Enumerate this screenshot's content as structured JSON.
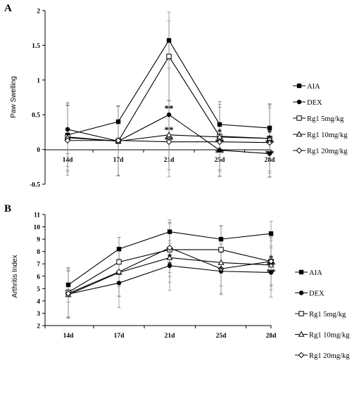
{
  "chart_data": [
    {
      "type": "line",
      "panel_label": "A",
      "ylabel": "Paw Swelling",
      "xlabel": "",
      "categories": [
        "14d",
        "17d",
        "21d",
        "25d",
        "28d"
      ],
      "ylim": [
        -0.5,
        2
      ],
      "yticks": [
        "-0.5",
        "0",
        "0.5",
        "1",
        "1.5",
        "2"
      ],
      "ytick_values": [
        -0.5,
        0,
        0.5,
        1,
        1.5,
        2
      ],
      "grid": false,
      "legend_position": "right",
      "series": [
        {
          "name": "AIA",
          "marker": "square-filled",
          "values": [
            0.21,
            0.4,
            1.57,
            0.36,
            0.31
          ],
          "errors": [
            0.45,
            0.23,
            0.28,
            0.33,
            0.34
          ]
        },
        {
          "name": "DEX",
          "marker": "circle-filled",
          "values": [
            0.29,
            0.12,
            0.5,
            -0.01,
            -0.06
          ],
          "errors": [
            0.35,
            0.5,
            0.67,
            0.37,
            0.33
          ]
        },
        {
          "name": "Rg1 5mg/kg",
          "marker": "square-open",
          "values": [
            0.18,
            0.12,
            1.34,
            0.19,
            0.16
          ],
          "errors": [
            0.5,
            0.5,
            0.64,
            0.5,
            0.5
          ]
        },
        {
          "name": "Rg1 10mg/kg",
          "marker": "triangle-open",
          "values": [
            0.17,
            0.12,
            0.21,
            0.18,
            0.16
          ],
          "errors": [
            0.47,
            0.5,
            0.5,
            0.47,
            0.47
          ]
        },
        {
          "name": "Rg1 20mg/kg",
          "marker": "diamond-open",
          "values": [
            0.13,
            0.13,
            0.11,
            0.11,
            0.1
          ],
          "errors": [
            0.5,
            0.5,
            0.5,
            0.5,
            0.5
          ]
        }
      ],
      "annotations": [
        {
          "text": "**",
          "x": "21d",
          "y": 0.61
        },
        {
          "text": "**",
          "x": "21d",
          "y": 0.3
        },
        {
          "text": "**",
          "x": "21d",
          "y": 0.16
        },
        {
          "text": "*",
          "x": "25d",
          "y": 0.27
        },
        {
          "text": "**",
          "x": "25d",
          "y": 0.13
        },
        {
          "text": "**",
          "x": "25d",
          "y": -0.03
        },
        {
          "text": "*",
          "x": "28d",
          "y": 0.26
        },
        {
          "text": "*",
          "x": "28d",
          "y": 0.18
        },
        {
          "text": "**",
          "x": "28d",
          "y": 0.11
        },
        {
          "text": "**",
          "x": "28d",
          "y": -0.04
        }
      ]
    },
    {
      "type": "line",
      "panel_label": "B",
      "ylabel": "Arthritis Index",
      "xlabel": "",
      "categories": [
        "14d",
        "17d",
        "21d",
        "25d",
        "28d"
      ],
      "ylim": [
        2,
        11
      ],
      "yticks": [
        "2",
        "3",
        "4",
        "5",
        "6",
        "7",
        "8",
        "9",
        "10",
        "11"
      ],
      "ytick_values": [
        2,
        3,
        4,
        5,
        6,
        7,
        8,
        9,
        10,
        11
      ],
      "grid": false,
      "legend_position": "right",
      "series": [
        {
          "name": "AIA",
          "marker": "square-filled",
          "values": [
            5.3,
            8.2,
            9.6,
            9.0,
            9.45
          ],
          "errors": [
            1.4,
            0.95,
            0.95,
            1.1,
            1.0
          ]
        },
        {
          "name": "DEX",
          "marker": "circle-filled",
          "values": [
            4.55,
            5.45,
            6.85,
            6.4,
            6.3
          ],
          "errors": [
            1.9,
            2.0,
            2.0,
            1.9,
            2.0
          ]
        },
        {
          "name": "Rg1 5mg/kg",
          "marker": "square-open",
          "values": [
            4.7,
            7.15,
            8.15,
            8.15,
            7.2
          ],
          "errors": [
            2.0,
            2.0,
            2.2,
            1.9,
            2.0
          ]
        },
        {
          "name": "Rg1 10mg/kg",
          "marker": "triangle-open",
          "values": [
            4.5,
            6.3,
            7.5,
            7.1,
            6.9
          ],
          "errors": [
            1.9,
            1.9,
            2.0,
            1.9,
            2.0
          ]
        },
        {
          "name": "Rg1 20mg/kg",
          "marker": "diamond-open",
          "values": [
            4.6,
            6.35,
            8.3,
            6.6,
            7.2
          ],
          "errors": [
            2.0,
            2.0,
            2.0,
            2.0,
            1.9
          ]
        }
      ],
      "annotations": [
        {
          "text": "*",
          "x": "21d",
          "y": 7.7
        },
        {
          "text": "*",
          "x": "21d",
          "y": 7.05
        },
        {
          "text": "*",
          "x": "25d",
          "y": 6.65
        },
        {
          "text": "*",
          "x": "28d",
          "y": 7.55
        },
        {
          "text": "**",
          "x": "28d",
          "y": 7.0
        },
        {
          "text": "**",
          "x": "28d",
          "y": 6.45
        }
      ]
    }
  ]
}
